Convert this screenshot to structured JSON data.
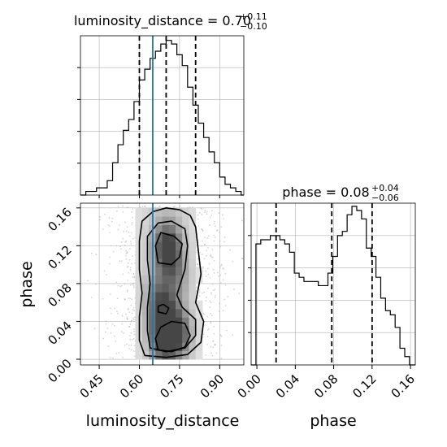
{
  "chart_data": [
    {
      "type": "histogram",
      "panel": "luminosity_distance-marginal",
      "title": {
        "param": "luminosity_distance",
        "median": "0.70",
        "plus": "+0.11",
        "minus": "−0.10"
      },
      "xlim": [
        0.38,
        0.99
      ],
      "bin_edges": [
        0.38,
        0.4,
        0.42,
        0.44,
        0.46,
        0.48,
        0.5,
        0.52,
        0.54,
        0.56,
        0.58,
        0.6,
        0.62,
        0.64,
        0.66,
        0.68,
        0.7,
        0.72,
        0.74,
        0.76,
        0.78,
        0.8,
        0.82,
        0.84,
        0.86,
        0.88,
        0.9,
        0.92,
        0.94,
        0.96,
        0.98,
        0.99
      ],
      "counts": [
        0,
        1,
        1,
        2,
        2,
        4,
        9,
        14,
        18,
        21,
        26,
        32,
        35,
        38,
        40,
        42,
        43,
        42,
        39,
        36,
        30,
        25,
        20,
        16,
        12,
        9,
        5,
        3,
        2,
        1,
        0
      ],
      "quantile_lines": [
        0.6,
        0.7,
        0.81
      ],
      "truth_value": 0.65,
      "grid": true
    },
    {
      "type": "histogram",
      "panel": "phase-marginal",
      "title": {
        "param": "phase",
        "median": "0.08",
        "plus": "+0.04",
        "minus": "−0.06"
      },
      "xlim": [
        -0.006,
        0.165
      ],
      "bin_edges": [
        -0.006,
        -0.001,
        0.004,
        0.009,
        0.014,
        0.019,
        0.024,
        0.029,
        0.034,
        0.039,
        0.044,
        0.049,
        0.054,
        0.059,
        0.064,
        0.069,
        0.074,
        0.079,
        0.084,
        0.089,
        0.094,
        0.099,
        0.104,
        0.109,
        0.114,
        0.119,
        0.124,
        0.129,
        0.134,
        0.139,
        0.144,
        0.149,
        0.154,
        0.159,
        0.165
      ],
      "counts": [
        0,
        29,
        30,
        30,
        31,
        31,
        30,
        29,
        27,
        22,
        21,
        20,
        20,
        20,
        19,
        19,
        22,
        26,
        31,
        32,
        36,
        38,
        37,
        35,
        28,
        26,
        21,
        16,
        13,
        12,
        9,
        4,
        2,
        0
      ],
      "quantile_lines": [
        0.02,
        0.078,
        0.12
      ],
      "grid": true
    },
    {
      "type": "heatmap",
      "panel": "phase-vs-luminosity_distance",
      "xlabel": "luminosity_distance",
      "ylabel": "phase",
      "xlim": [
        0.38,
        0.99
      ],
      "ylim": [
        -0.006,
        0.165
      ],
      "x_ticks": [
        "0.45",
        "0.60",
        "0.75",
        "0.90"
      ],
      "x_tick_values": [
        0.45,
        0.6,
        0.75,
        0.9
      ],
      "y_ticks": [
        "0.00",
        "0.04",
        "0.08",
        "0.12",
        "0.16"
      ],
      "y_tick_values": [
        0.0,
        0.04,
        0.08,
        0.12,
        0.16
      ],
      "truth_value_x": 0.65,
      "density_peaks": [
        {
          "x": 0.705,
          "y": 0.118,
          "level": 0.95
        },
        {
          "x": 0.69,
          "y": 0.023,
          "level": 0.9
        },
        {
          "x": 0.745,
          "y": 0.028,
          "level": 0.75
        },
        {
          "x": 0.69,
          "y": 0.052,
          "level": 0.55
        },
        {
          "x": 0.74,
          "y": 0.088,
          "level": 0.35
        },
        {
          "x": 0.665,
          "y": 0.07,
          "level": 0.3
        }
      ],
      "contour_levels": [
        "outer",
        "middle",
        "inner"
      ],
      "grid": true
    },
    {
      "type": "axis",
      "panel": "phase-marginal-xaxis",
      "xlabel": "phase",
      "x_ticks": [
        "0.00",
        "0.04",
        "0.08",
        "0.12",
        "0.16"
      ],
      "x_tick_values": [
        0.0,
        0.04,
        0.08,
        0.12,
        0.16
      ]
    }
  ],
  "colors": {
    "histogram_line": "#000000",
    "quantile_line": "#000000",
    "truth_line": "#1f77b4",
    "grid": "#b0b0b0",
    "density_dark": "#555555",
    "scatter_points": "#b0b0b0"
  }
}
